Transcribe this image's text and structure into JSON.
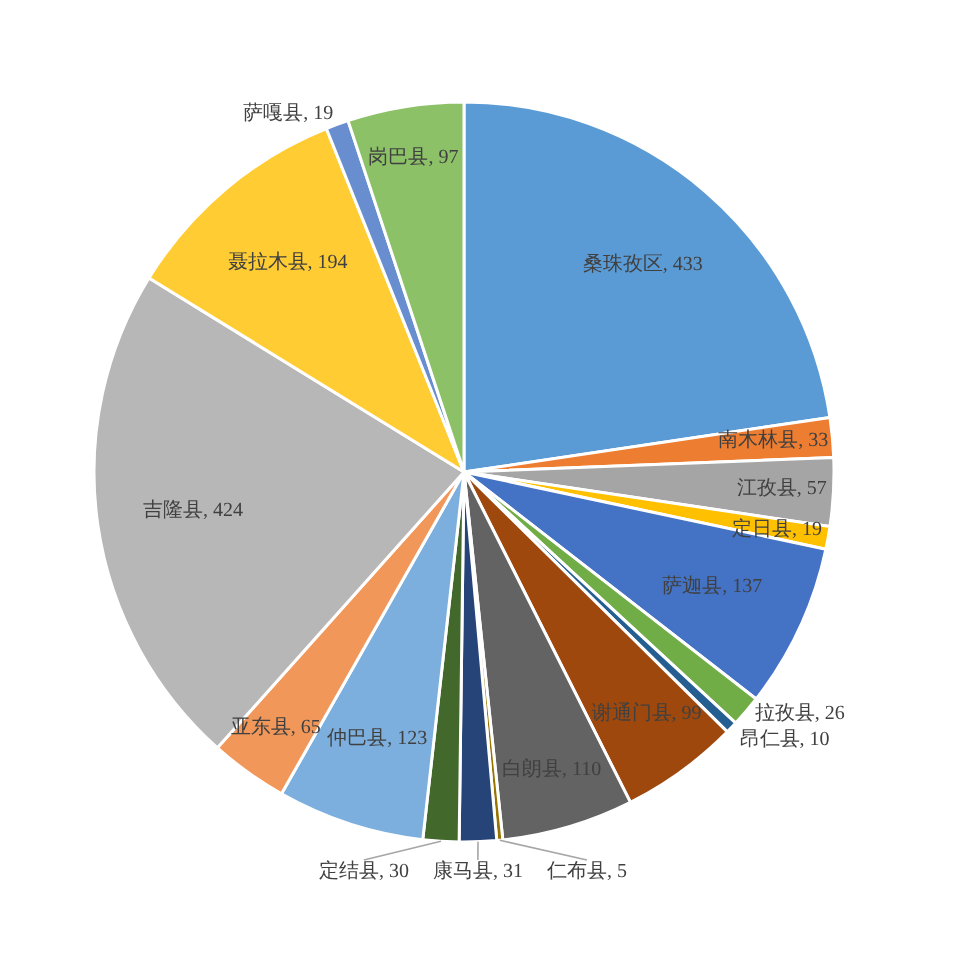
{
  "chart_data": {
    "type": "pie",
    "categories": [
      "桑珠孜区",
      "南木林县",
      "江孜县",
      "定日县",
      "萨迦县",
      "拉孜县",
      "昂仁县",
      "谢通门县",
      "白朗县",
      "仁布县",
      "康马县",
      "定结县",
      "仲巴县",
      "亚东县",
      "吉隆县",
      "聂拉木县",
      "萨嘎县",
      "岗巴县"
    ],
    "values": [
      433,
      33,
      57,
      19,
      137,
      26,
      10,
      99,
      110,
      5,
      31,
      30,
      123,
      65,
      424,
      194,
      19,
      97
    ],
    "value_labels": [
      ", 433",
      ", 33",
      ", 57",
      ", 19",
      ", 137",
      ", 26",
      ", 10",
      ", 99",
      ", 110",
      ", 5",
      ", 31",
      ", 30",
      ", 123",
      ", 65",
      ", 424",
      ", 194",
      ", 19",
      ", 97"
    ],
    "colors": [
      "#5b9bd5",
      "#ed7d31",
      "#a5a5a5",
      "#ffc000",
      "#4472c4",
      "#70ad47",
      "#255e91",
      "#9e480e",
      "#636363",
      "#997300",
      "#264478",
      "#43682b",
      "#7cafdd",
      "#f1975a",
      "#b7b7b7",
      "#ffcd33",
      "#698ed0",
      "#8cc168"
    ]
  }
}
